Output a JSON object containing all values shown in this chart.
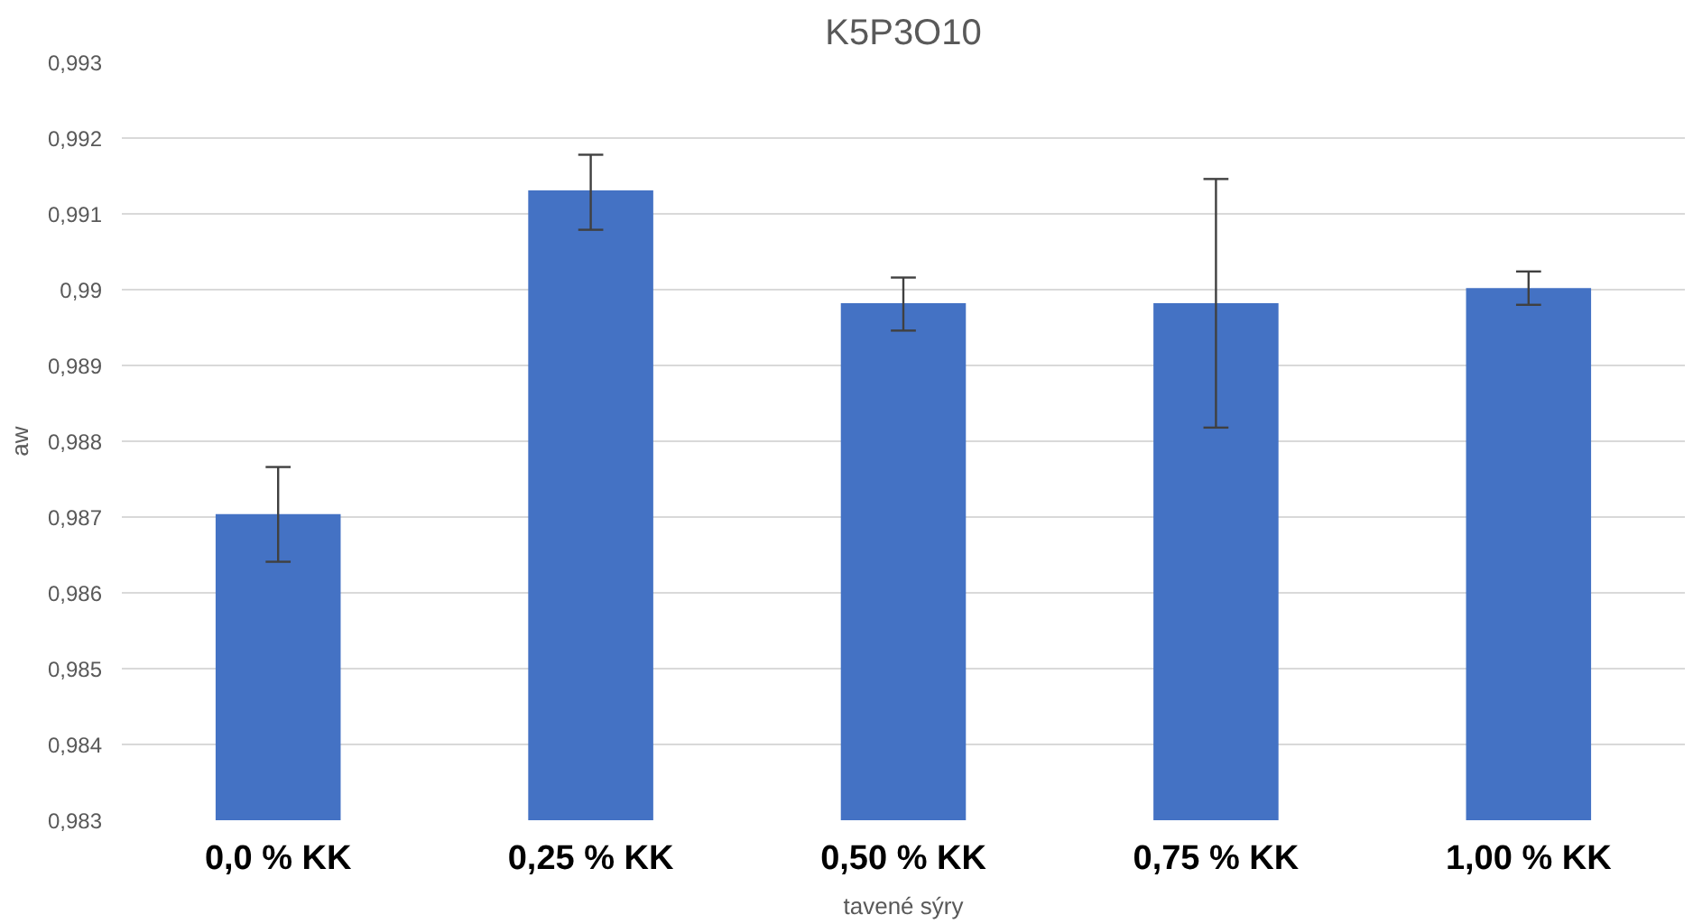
{
  "chart_data": {
    "type": "bar",
    "title": "K5P3O10",
    "xlabel": "tavené sýry",
    "ylabel": "aw",
    "categories": [
      "0,0 % KK",
      "0,25 % KK",
      "0,50 % KK",
      "0,75 % KK",
      "1,00 % KK"
    ],
    "values": [
      0.98704,
      0.99131,
      0.98982,
      0.98982,
      0.99002
    ],
    "errors": [
      [
        0.98641,
        0.98766
      ],
      [
        0.99079,
        0.99178
      ],
      [
        0.98946,
        0.99016
      ],
      [
        0.98818,
        0.99146
      ],
      [
        0.9898,
        0.99024
      ]
    ],
    "color": "#4472c4",
    "ylim": [
      0.983,
      0.993
    ],
    "yticks": [
      {
        "value": 0.983,
        "label": "0,983"
      },
      {
        "value": 0.984,
        "label": "0,984"
      },
      {
        "value": 0.985,
        "label": "0,985"
      },
      {
        "value": 0.986,
        "label": "0,986"
      },
      {
        "value": 0.987,
        "label": "0,987"
      },
      {
        "value": 0.988,
        "label": "0,988"
      },
      {
        "value": 0.989,
        "label": "0,989"
      },
      {
        "value": 0.99,
        "label": "0,99"
      },
      {
        "value": 0.991,
        "label": "0,991"
      },
      {
        "value": 0.992,
        "label": "0,992"
      },
      {
        "value": 0.993,
        "label": "0,993"
      }
    ],
    "grid": "y"
  }
}
